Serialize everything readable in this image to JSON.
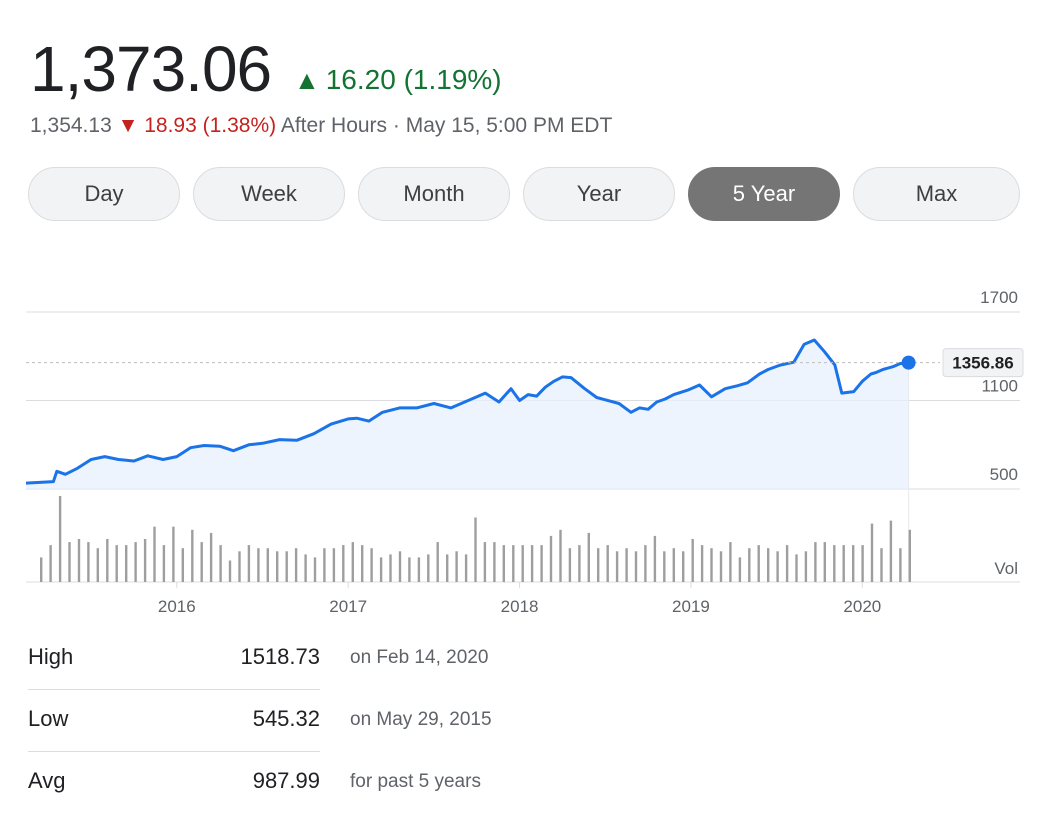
{
  "quote": {
    "price": "1,373.06",
    "change_arrow": "▲",
    "change": "16.20 (1.19%)",
    "after_price": "1,354.13",
    "after_arrow": "▼",
    "after_change": "18.93 (1.38%)",
    "after_label": "After Hours · May 15, 5:00 PM EDT"
  },
  "colors": {
    "positive": "#137333",
    "negative": "#c5221f",
    "line": "#1a73e8",
    "area": "#e8f0fe",
    "volume": "#9e9e9e",
    "active_tab": "#757575"
  },
  "ranges": [
    {
      "label": "Day",
      "active": false
    },
    {
      "label": "Week",
      "active": false
    },
    {
      "label": "Month",
      "active": false
    },
    {
      "label": "Year",
      "active": false
    },
    {
      "label": "5 Year",
      "active": true
    },
    {
      "label": "Max",
      "active": false
    }
  ],
  "chart_data": {
    "type": "line",
    "y_ticks": [
      "1700",
      "1100",
      "500"
    ],
    "ylim": [
      0,
      1800
    ],
    "x_ticks": [
      "2016",
      "2017",
      "2018",
      "2019",
      "2020"
    ],
    "x_range": [
      2015.12,
      2020.92
    ],
    "current_label": "1356.86",
    "current_value": 1356.86,
    "volume_label": "Vol",
    "series": [
      {
        "x": [
          2015.12,
          2015.2,
          2015.28,
          2015.3,
          2015.35,
          2015.42,
          2015.5,
          2015.58,
          2015.66,
          2015.75,
          2015.83,
          2015.92,
          2016.0,
          2016.08,
          2016.16,
          2016.25,
          2016.33,
          2016.42,
          2016.5,
          2016.6,
          2016.7,
          2016.8,
          2016.9,
          2017.0,
          2017.05,
          2017.12,
          2017.2,
          2017.3,
          2017.4,
          2017.5,
          2017.6,
          2017.7,
          2017.8,
          2017.88,
          2017.95,
          2018.0,
          2018.05,
          2018.1,
          2018.15,
          2018.2,
          2018.25,
          2018.3,
          2018.38,
          2018.45,
          2018.5,
          2018.58,
          2018.65,
          2018.7,
          2018.75,
          2018.8,
          2018.85,
          2018.9,
          2018.98,
          2019.05,
          2019.12,
          2019.2,
          2019.27,
          2019.33,
          2019.4,
          2019.45,
          2019.52,
          2019.6,
          2019.66,
          2019.72,
          2019.78,
          2019.84,
          2019.88,
          2019.95,
          2020.0,
          2020.05,
          2020.08,
          2020.12,
          2020.18,
          2020.22,
          2020.27
        ],
        "y": [
          540,
          545,
          550,
          620,
          600,
          640,
          700,
          720,
          700,
          690,
          725,
          700,
          720,
          780,
          795,
          790,
          760,
          800,
          810,
          835,
          830,
          875,
          940,
          975,
          980,
          960,
          1020,
          1050,
          1050,
          1080,
          1050,
          1100,
          1150,
          1090,
          1180,
          1100,
          1140,
          1130,
          1190,
          1230,
          1260,
          1255,
          1180,
          1120,
          1105,
          1080,
          1020,
          1050,
          1040,
          1090,
          1110,
          1140,
          1170,
          1205,
          1125,
          1180,
          1200,
          1220,
          1280,
          1310,
          1340,
          1360,
          1480,
          1510,
          1430,
          1340,
          1150,
          1160,
          1230,
          1280,
          1290,
          1310,
          1330,
          1350,
          1356.86
        ]
      }
    ],
    "volume": [
      8,
      12,
      28,
      13,
      14,
      13,
      11,
      14,
      12,
      12,
      13,
      14,
      18,
      12,
      18,
      11,
      17,
      13,
      16,
      12,
      7,
      10,
      12,
      11,
      11,
      10,
      10,
      11,
      9,
      8,
      11,
      11,
      12,
      13,
      12,
      11,
      8,
      9,
      10,
      8,
      8,
      9,
      13,
      9,
      10,
      9,
      21,
      13,
      13,
      12,
      12,
      12,
      12,
      12,
      15,
      17,
      11,
      12,
      16,
      11,
      12,
      10,
      11,
      10,
      12,
      15,
      10,
      11,
      10,
      14,
      12,
      11,
      10,
      13,
      8,
      11,
      12,
      11,
      10,
      12,
      9,
      10,
      13,
      13,
      12,
      12,
      12,
      12,
      19,
      11,
      20,
      11,
      17
    ]
  },
  "stats": [
    {
      "label": "High",
      "value": "1518.73",
      "note": "on Feb 14, 2020"
    },
    {
      "label": "Low",
      "value": "545.32",
      "note": "on May 29, 2015"
    },
    {
      "label": "Avg",
      "value": "987.99",
      "note": "for past 5 years"
    }
  ]
}
